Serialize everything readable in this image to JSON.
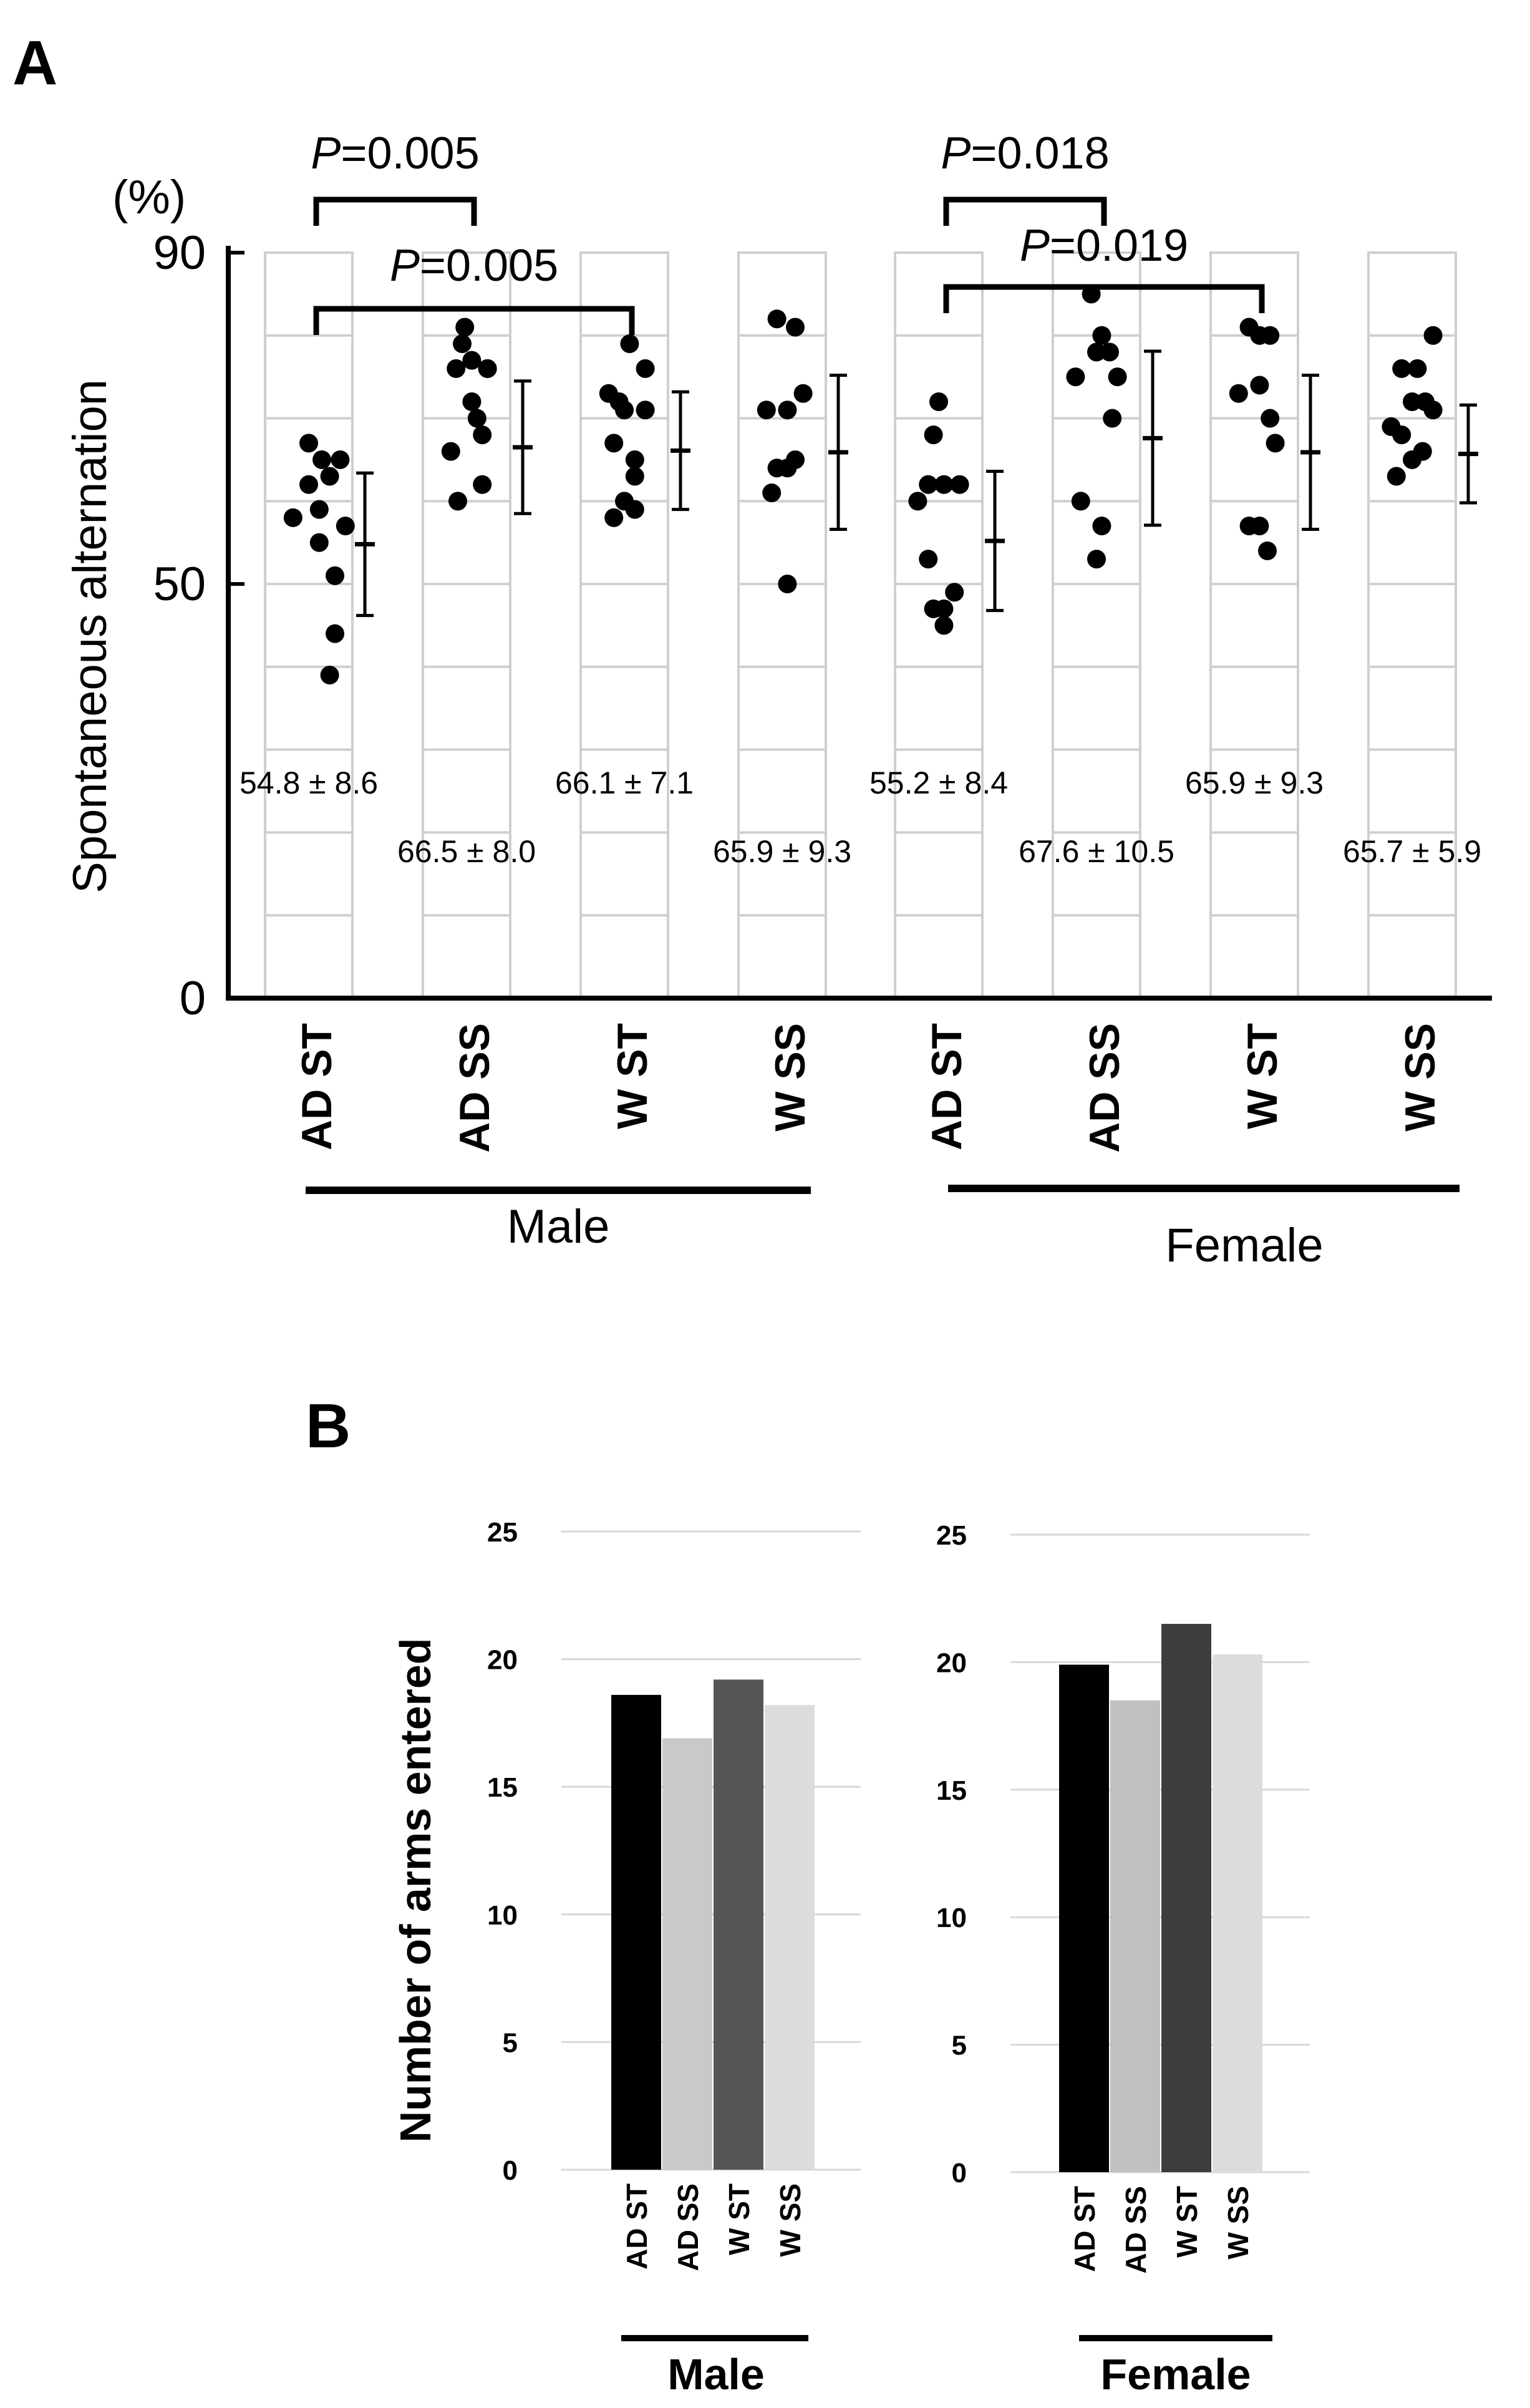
{
  "panel_a": {
    "label": "A",
    "unit": "(%)",
    "ylabel": "Spontaneous alternation",
    "yticks": [
      0,
      50,
      90
    ],
    "comparisons": [
      {
        "text": "=0.005",
        "p": "P",
        "from": 0,
        "to": 1
      },
      {
        "text": "=0.005",
        "p": "P",
        "from": 0,
        "to": 2
      },
      {
        "text": "=0.018",
        "p": "P",
        "from": 4,
        "to": 5
      },
      {
        "text": "=0.019",
        "p": "P",
        "from": 4,
        "to": 6
      }
    ],
    "groups": [
      "Male",
      "Female"
    ]
  },
  "panel_b": {
    "label": "B",
    "ylabel": "Number of arms entered",
    "yticks": [
      0,
      5,
      10,
      15,
      20,
      25
    ]
  },
  "chart_data": [
    {
      "type": "scatter",
      "title": "A",
      "ylabel": "Spontaneous alternation",
      "yunit": "(%)",
      "ylim": [
        0,
        90
      ],
      "categories": [
        "AD ST",
        "AD SS",
        "W ST",
        "W SS",
        "AD ST",
        "AD SS",
        "W ST",
        "W SS"
      ],
      "groups": [
        {
          "name": "Male",
          "categories": [
            0,
            1,
            2,
            3
          ]
        },
        {
          "name": "Female",
          "categories": [
            4,
            5,
            6,
            7
          ]
        }
      ],
      "means": [
        54.8,
        66.5,
        66.1,
        65.9,
        55.2,
        67.6,
        65.9,
        65.7
      ],
      "sds": [
        8.6,
        8.0,
        7.1,
        9.3,
        8.4,
        10.5,
        9.3,
        5.9
      ],
      "stat_labels": [
        "54.8 ± 8.6",
        "66.5 ± 8.0",
        "66.1 ± 7.1",
        "65.9 ± 9.3",
        "55.2 ± 8.4",
        "67.6 ± 10.5",
        "65.9 ± 9.3",
        "65.7 ± 5.9"
      ],
      "points": [
        [
          [
            -0.68,
            58
          ],
          [
            -0.5,
            62
          ],
          [
            -0.38,
            59
          ],
          [
            -0.14,
            65
          ],
          [
            -0.38,
            55
          ],
          [
            -0.26,
            63
          ],
          [
            -0.2,
            44
          ],
          [
            -0.08,
            57
          ],
          [
            -0.2,
            51
          ],
          [
            -0.5,
            67
          ],
          [
            -0.35,
            65
          ],
          [
            -0.26,
            39
          ]
        ],
        [
          [
            -0.68,
            66
          ],
          [
            -0.44,
            77
          ],
          [
            -0.55,
            79
          ],
          [
            -0.44,
            72
          ],
          [
            -0.26,
            76
          ],
          [
            -0.52,
            81
          ],
          [
            -0.62,
            76
          ],
          [
            -0.32,
            68
          ],
          [
            -0.38,
            70
          ],
          [
            -0.32,
            62
          ],
          [
            -0.26,
            76
          ],
          [
            -0.6,
            60
          ]
        ],
        [
          [
            -0.68,
            73
          ],
          [
            -0.44,
            79
          ],
          [
            -0.26,
            76
          ],
          [
            -0.5,
            71
          ],
          [
            -0.62,
            67
          ],
          [
            -0.38,
            65
          ],
          [
            -0.56,
            72
          ],
          [
            -0.38,
            63
          ],
          [
            -0.5,
            60
          ],
          [
            -0.38,
            59
          ],
          [
            -0.26,
            71
          ],
          [
            -0.62,
            58
          ]
        ],
        [
          [
            -0.68,
            71
          ],
          [
            -0.56,
            82
          ],
          [
            -0.44,
            71
          ],
          [
            -0.26,
            73
          ],
          [
            -0.35,
            81
          ],
          [
            -0.56,
            64
          ],
          [
            -0.44,
            64
          ],
          [
            -0.35,
            65
          ],
          [
            -0.62,
            61
          ],
          [
            -0.44,
            50
          ]
        ],
        [
          [
            -0.74,
            60
          ],
          [
            -0.62,
            62
          ],
          [
            -0.44,
            62
          ],
          [
            -0.56,
            68
          ],
          [
            -0.26,
            62
          ],
          [
            -0.5,
            72
          ],
          [
            -0.62,
            53
          ],
          [
            -0.44,
            47
          ],
          [
            -0.32,
            49
          ],
          [
            -0.56,
            47
          ],
          [
            -0.44,
            45
          ]
        ],
        [
          [
            -0.74,
            75
          ],
          [
            -0.56,
            85
          ],
          [
            -0.44,
            80
          ],
          [
            -0.35,
            78
          ],
          [
            -0.26,
            75
          ],
          [
            -0.5,
            78
          ],
          [
            -0.32,
            70
          ],
          [
            -0.68,
            60
          ],
          [
            -0.44,
            57
          ],
          [
            -0.5,
            53
          ]
        ],
        [
          [
            -0.68,
            73
          ],
          [
            -0.56,
            81
          ],
          [
            -0.44,
            80
          ],
          [
            -0.32,
            80
          ],
          [
            -0.44,
            74
          ],
          [
            -0.32,
            70
          ],
          [
            -0.26,
            67
          ],
          [
            -0.56,
            57
          ],
          [
            -0.44,
            57
          ],
          [
            -0.35,
            54
          ]
        ],
        [
          [
            -0.74,
            69
          ],
          [
            -0.62,
            76
          ],
          [
            -0.44,
            76
          ],
          [
            -0.5,
            72
          ],
          [
            -0.35,
            72
          ],
          [
            -0.26,
            80
          ],
          [
            -0.62,
            68
          ],
          [
            -0.5,
            65
          ],
          [
            -0.38,
            66
          ],
          [
            -0.68,
            63
          ],
          [
            -0.26,
            71
          ]
        ]
      ]
    },
    {
      "type": "bar",
      "title": "Male",
      "categories": [
        "AD ST",
        "AD SS",
        "W ST",
        "W SS"
      ],
      "values": [
        18.6,
        16.9,
        19.2,
        18.2
      ],
      "colors": [
        "#000000",
        "#c9c9c9",
        "#555555",
        "#dcdcdc"
      ],
      "ylabel": "Number of arms entered",
      "ylim": [
        0,
        25
      ]
    },
    {
      "type": "bar",
      "title": "Female",
      "categories": [
        "AD ST",
        "AD SS",
        "W ST",
        "W SS"
      ],
      "values": [
        19.9,
        18.5,
        21.5,
        20.3
      ],
      "colors": [
        "#000000",
        "#c0c0c0",
        "#3d3d3d",
        "#dcdcdc"
      ],
      "ylabel": "Number of arms entered",
      "ylim": [
        0,
        25
      ]
    }
  ]
}
